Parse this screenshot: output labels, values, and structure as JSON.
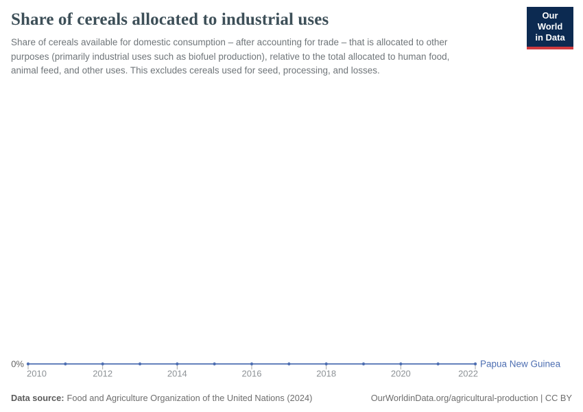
{
  "header": {
    "title": "Share of cereals allocated to industrial uses",
    "subtitle": "Share of cereals available for domestic consumption – after accounting for trade – that is allocated to other\npurposes (primarily industrial uses such as biofuel production), relative to the total allocated to human food,\nanimal feed, and other uses. This excludes cereals used for seed, processing, and losses.",
    "logo": {
      "line1": "Our World",
      "line2": "in Data",
      "bg_color": "#0c2a51",
      "accent_color": "#cf3a3f"
    }
  },
  "chart_data": {
    "type": "line",
    "title": "Share of cereals allocated to industrial uses",
    "x": [
      2010,
      2011,
      2012,
      2013,
      2014,
      2015,
      2016,
      2017,
      2018,
      2019,
      2020,
      2021,
      2022
    ],
    "series": [
      {
        "name": "Papua New Guinea",
        "color": "#4e6fb2",
        "values": [
          0,
          0,
          0,
          0,
          0,
          0,
          0,
          0,
          0,
          0,
          0,
          0,
          0
        ]
      }
    ],
    "x_ticks": [
      2010,
      2012,
      2014,
      2016,
      2018,
      2020,
      2022
    ],
    "x_range": [
      2010,
      2022
    ],
    "ylim": [
      0,
      0
    ],
    "y_axis": {
      "tick_labels": [
        "0%"
      ],
      "min_label": "0%"
    },
    "grid": false,
    "legend": "entity-label-right-of-line"
  },
  "axis_style": {
    "year_label_color": "#8d9296",
    "y_label_color": "#636363",
    "tick_color": "#a8a8a8"
  },
  "footer": {
    "datasource_label": "Data source:",
    "datasource_text": "Food and Agriculture Organization of the United Nations (2024)",
    "rights": "OurWorldinData.org/agricultural-production | CC BY"
  }
}
